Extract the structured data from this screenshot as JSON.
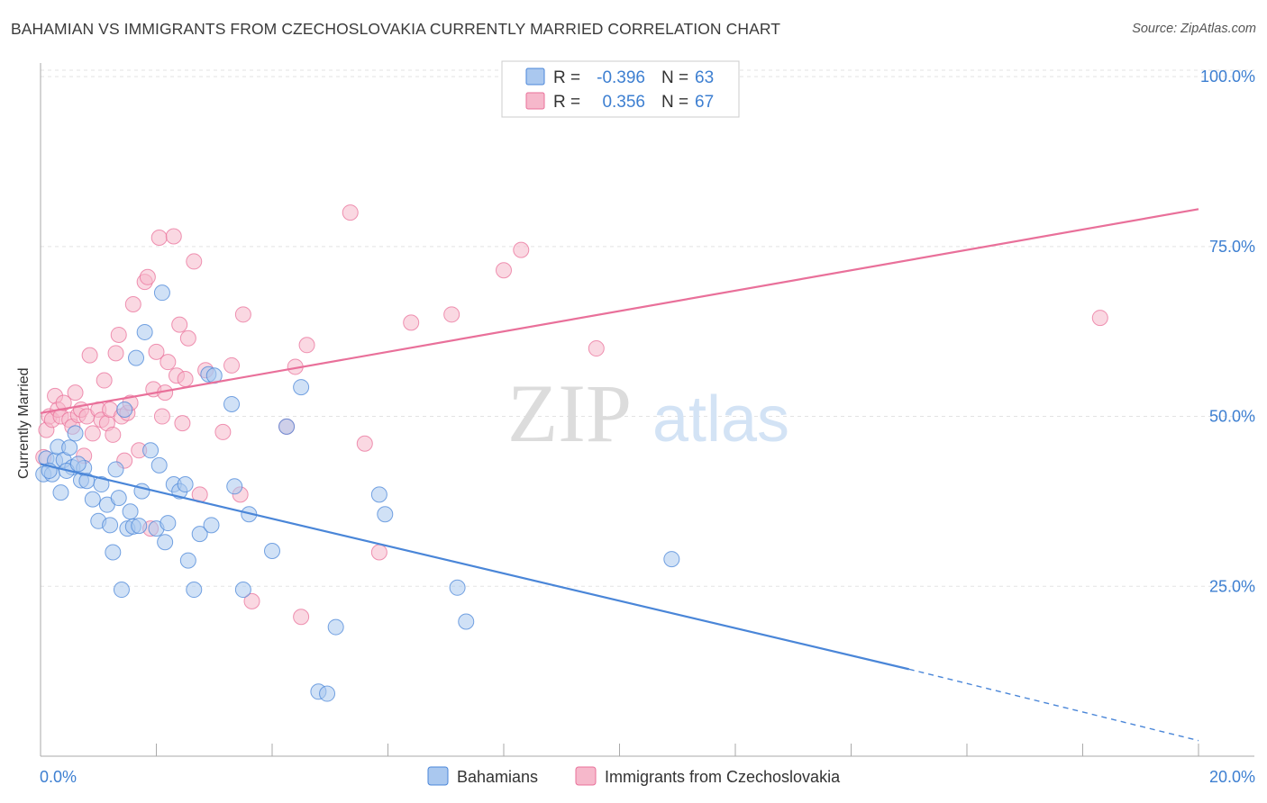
{
  "title": "BAHAMIAN VS IMMIGRANTS FROM CZECHOSLOVAKIA CURRENTLY MARRIED CORRELATION CHART",
  "source": "Source: ZipAtlas.com",
  "watermark": {
    "zip": "ZIP",
    "atlas": "atlas"
  },
  "legend_box": {
    "rows": [
      {
        "r_label": "R =",
        "r_value": "-0.396",
        "n_label": "N =",
        "n_value": "63",
        "color": "#aac8ef"
      },
      {
        "r_label": "R =",
        "r_value": "0.356",
        "n_label": "N =",
        "n_value": "67",
        "color": "#f6b8cb"
      }
    ]
  },
  "chart_data": {
    "type": "scatter",
    "title": "BAHAMIAN VS IMMIGRANTS FROM CZECHOSLOVAKIA CURRENTLY MARRIED CORRELATION CHART",
    "xlabel": "",
    "ylabel": "Currently Married",
    "xlim": [
      0,
      20
    ],
    "ylim": [
      0,
      102
    ],
    "x_tick_labels": [
      "0.0%",
      "20.0%"
    ],
    "y_ticks": [
      25,
      50,
      75,
      100
    ],
    "y_tick_labels": [
      "25.0%",
      "50.0%",
      "75.0%",
      "100.0%"
    ],
    "grid": true,
    "legend_position": "bottom",
    "colors": {
      "blue": "#4a86d8",
      "blue_fill": "#aac8ef",
      "pink": "#e9709a",
      "pink_fill": "#f6b8cb",
      "tick_text": "#3d7fd1"
    },
    "series": [
      {
        "name": "Bahamians",
        "color": "#4a86d8",
        "trend": {
          "x0": 0,
          "y0": 43,
          "x1": 15.0,
          "y1": 12.8,
          "dash_to_x": 20,
          "dash_to_y": 2.3
        },
        "points": [
          [
            0.05,
            41.5
          ],
          [
            0.1,
            43.8
          ],
          [
            0.2,
            41.5
          ],
          [
            0.25,
            43.5
          ],
          [
            0.3,
            45.5
          ],
          [
            0.35,
            38.8
          ],
          [
            0.4,
            43.6
          ],
          [
            0.5,
            45.4
          ],
          [
            0.55,
            42.5
          ],
          [
            0.6,
            47.5
          ],
          [
            0.7,
            40.6
          ],
          [
            0.75,
            42.4
          ],
          [
            0.8,
            40.5
          ],
          [
            0.9,
            37.8
          ],
          [
            1.0,
            34.6
          ],
          [
            1.05,
            40.0
          ],
          [
            1.15,
            37.0
          ],
          [
            1.2,
            34.0
          ],
          [
            1.25,
            30.0
          ],
          [
            1.3,
            42.2
          ],
          [
            1.35,
            38.0
          ],
          [
            1.4,
            24.5
          ],
          [
            1.45,
            51.0
          ],
          [
            1.5,
            33.5
          ],
          [
            1.55,
            36.0
          ],
          [
            1.6,
            33.8
          ],
          [
            1.65,
            58.6
          ],
          [
            1.7,
            33.9
          ],
          [
            1.75,
            39.0
          ],
          [
            1.8,
            62.4
          ],
          [
            1.9,
            45.0
          ],
          [
            2.0,
            33.5
          ],
          [
            2.05,
            42.8
          ],
          [
            2.1,
            68.2
          ],
          [
            2.15,
            31.5
          ],
          [
            2.2,
            34.3
          ],
          [
            2.3,
            40.0
          ],
          [
            2.4,
            39.0
          ],
          [
            2.5,
            40.0
          ],
          [
            2.55,
            28.8
          ],
          [
            2.65,
            24.5
          ],
          [
            2.75,
            32.7
          ],
          [
            2.9,
            56.2
          ],
          [
            2.95,
            34.0
          ],
          [
            3.0,
            56.0
          ],
          [
            3.3,
            51.8
          ],
          [
            3.35,
            39.7
          ],
          [
            3.5,
            24.5
          ],
          [
            3.6,
            35.6
          ],
          [
            4.0,
            30.2
          ],
          [
            4.25,
            48.5
          ],
          [
            4.5,
            54.3
          ],
          [
            4.8,
            9.5
          ],
          [
            4.95,
            9.2
          ],
          [
            5.1,
            19.0
          ],
          [
            5.85,
            38.5
          ],
          [
            5.95,
            35.6
          ],
          [
            7.2,
            24.8
          ],
          [
            7.35,
            19.8
          ],
          [
            10.9,
            29.0
          ],
          [
            0.15,
            42.0
          ],
          [
            0.45,
            42.0
          ],
          [
            0.65,
            43.0
          ]
        ]
      },
      {
        "name": "Immigrants from Czechoslovakia",
        "color": "#e9709a",
        "trend": {
          "x0": 0,
          "y0": 50.5,
          "x1": 20,
          "y1": 80.5
        },
        "points": [
          [
            0.05,
            44.0
          ],
          [
            0.1,
            48.0
          ],
          [
            0.15,
            50.0
          ],
          [
            0.2,
            49.5
          ],
          [
            0.25,
            53.0
          ],
          [
            0.3,
            51.0
          ],
          [
            0.35,
            50.0
          ],
          [
            0.4,
            52.0
          ],
          [
            0.5,
            49.5
          ],
          [
            0.55,
            48.5
          ],
          [
            0.6,
            53.5
          ],
          [
            0.65,
            50.2
          ],
          [
            0.7,
            51.0
          ],
          [
            0.75,
            44.2
          ],
          [
            0.8,
            50.0
          ],
          [
            0.85,
            59.0
          ],
          [
            0.9,
            47.5
          ],
          [
            1.0,
            51.0
          ],
          [
            1.05,
            49.5
          ],
          [
            1.1,
            55.3
          ],
          [
            1.15,
            49.0
          ],
          [
            1.2,
            51.0
          ],
          [
            1.25,
            47.3
          ],
          [
            1.3,
            59.3
          ],
          [
            1.35,
            62.0
          ],
          [
            1.4,
            50.0
          ],
          [
            1.45,
            43.5
          ],
          [
            1.5,
            50.5
          ],
          [
            1.55,
            52.0
          ],
          [
            1.6,
            66.5
          ],
          [
            1.7,
            45.0
          ],
          [
            1.8,
            69.8
          ],
          [
            1.85,
            70.5
          ],
          [
            1.9,
            33.5
          ],
          [
            1.95,
            54.0
          ],
          [
            2.0,
            59.5
          ],
          [
            2.05,
            76.3
          ],
          [
            2.1,
            50.0
          ],
          [
            2.15,
            53.5
          ],
          [
            2.2,
            58.0
          ],
          [
            2.3,
            76.5
          ],
          [
            2.35,
            56.0
          ],
          [
            2.4,
            63.5
          ],
          [
            2.45,
            49.0
          ],
          [
            2.5,
            55.5
          ],
          [
            2.55,
            61.5
          ],
          [
            2.65,
            72.8
          ],
          [
            2.75,
            38.5
          ],
          [
            2.85,
            56.8
          ],
          [
            3.15,
            47.7
          ],
          [
            3.3,
            57.5
          ],
          [
            3.45,
            38.5
          ],
          [
            3.5,
            65.0
          ],
          [
            3.65,
            22.8
          ],
          [
            4.25,
            48.5
          ],
          [
            4.4,
            57.3
          ],
          [
            4.5,
            20.5
          ],
          [
            4.6,
            60.5
          ],
          [
            5.35,
            80.0
          ],
          [
            5.6,
            46.0
          ],
          [
            5.85,
            30.0
          ],
          [
            6.4,
            63.8
          ],
          [
            7.1,
            65.0
          ],
          [
            8.0,
            71.5
          ],
          [
            8.3,
            74.5
          ],
          [
            9.6,
            60.0
          ],
          [
            18.3,
            64.5
          ]
        ]
      }
    ]
  }
}
